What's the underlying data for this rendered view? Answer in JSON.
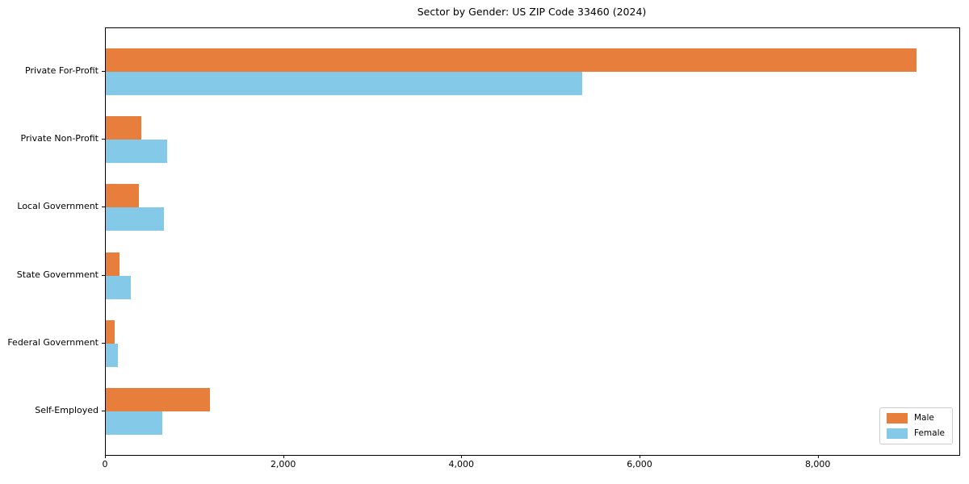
{
  "chart_data": {
    "type": "bar",
    "orientation": "horizontal",
    "title": "Sector by Gender: US ZIP Code 33460 (2024)",
    "categories": [
      "Private For-Profit",
      "Private Non-Profit",
      "Local Government",
      "State Government",
      "Federal Government",
      "Self-Employed"
    ],
    "series": [
      {
        "name": "Male",
        "color": "#E87E3C",
        "values": [
          9100,
          400,
          370,
          150,
          95,
          1170
        ]
      },
      {
        "name": "Female",
        "color": "#85C9E8",
        "values": [
          5350,
          690,
          650,
          280,
          140,
          630
        ]
      }
    ],
    "xlabel": "",
    "ylabel": "",
    "xlim": [
      0,
      9580
    ],
    "xticks": [
      0,
      2000,
      4000,
      6000,
      8000
    ],
    "xtick_labels": [
      "0",
      "2,000",
      "4,000",
      "6,000",
      "8,000"
    ],
    "grid": false,
    "legend_position": "lower right",
    "background_color": "#ffffff",
    "spine_color": "#000000"
  }
}
